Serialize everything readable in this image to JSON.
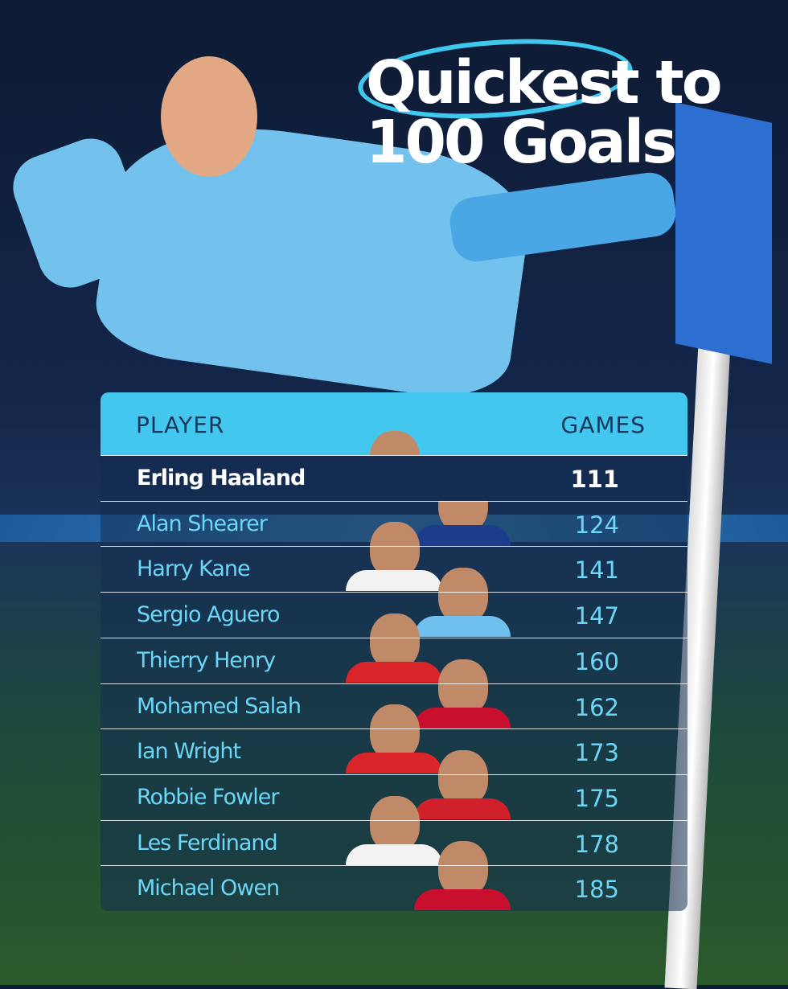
{
  "title": {
    "line1": "Quickest to",
    "line2": "100 Goals"
  },
  "table": {
    "headers": [
      "PLAYER",
      "GAMES"
    ],
    "rows": [
      [
        "Erling Haaland",
        "111"
      ],
      [
        "Alan Shearer",
        "124"
      ],
      [
        "Harry Kane",
        "141"
      ],
      [
        "Sergio Aguero",
        "147"
      ],
      [
        "Thierry Henry",
        "160"
      ],
      [
        "Mohamed Salah",
        "162"
      ],
      [
        "Ian Wright",
        "173"
      ],
      [
        "Robbie Fowler",
        "175"
      ],
      [
        "Les Ferdinand",
        "178"
      ],
      [
        "Michael Owen",
        "185"
      ]
    ]
  }
}
